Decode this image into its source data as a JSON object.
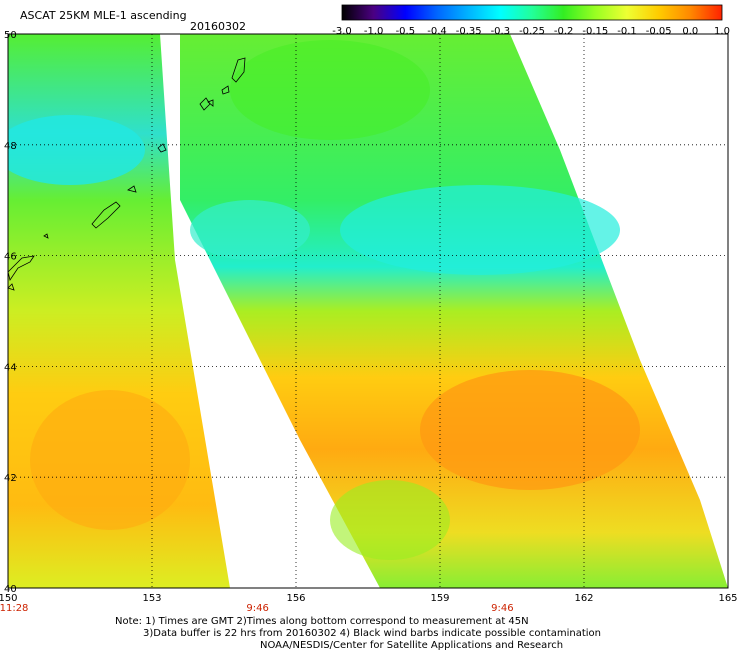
{
  "header": {
    "product": "ASCAT 25KM MLE-1 ascending",
    "date": "20160302"
  },
  "colorbar": {
    "labels": [
      "-3.0",
      "-1.0",
      "-0.5",
      "-0.4",
      "-0.35",
      "-0.3",
      "-0.25",
      "-0.2",
      "-0.15",
      "-0.1",
      "-0.05",
      "0.0",
      "1.0"
    ],
    "colors": [
      "#000000",
      "#4b0082",
      "#0000ff",
      "#0066ff",
      "#00b4ff",
      "#00ffff",
      "#22ff99",
      "#33ee22",
      "#99ff22",
      "#eeff33",
      "#ffcc00",
      "#ff8800",
      "#ff2200"
    ]
  },
  "map": {
    "lon_range": [
      150,
      165
    ],
    "lat_range": [
      40,
      50
    ],
    "lon_ticks": [
      "150",
      "153",
      "156",
      "159",
      "162",
      "165"
    ],
    "lat_ticks": [
      "40",
      "42",
      "44",
      "46",
      "48",
      "50"
    ],
    "time_labels": [
      {
        "lon": 150,
        "text": "11:28"
      },
      {
        "lon": 155.2,
        "text": "9:46"
      },
      {
        "lon": 160.3,
        "text": "9:46"
      }
    ]
  },
  "notes": {
    "line1": "Note: 1) Times are GMT 2)Times along bottom correspond to measurement at 45N",
    "line2": "3)Data buffer is 22 hrs from 20160302 4) Black wind barbs indicate possible contamination",
    "line3": "NOAA/NESDIS/Center for Satellite Applications and Research"
  }
}
